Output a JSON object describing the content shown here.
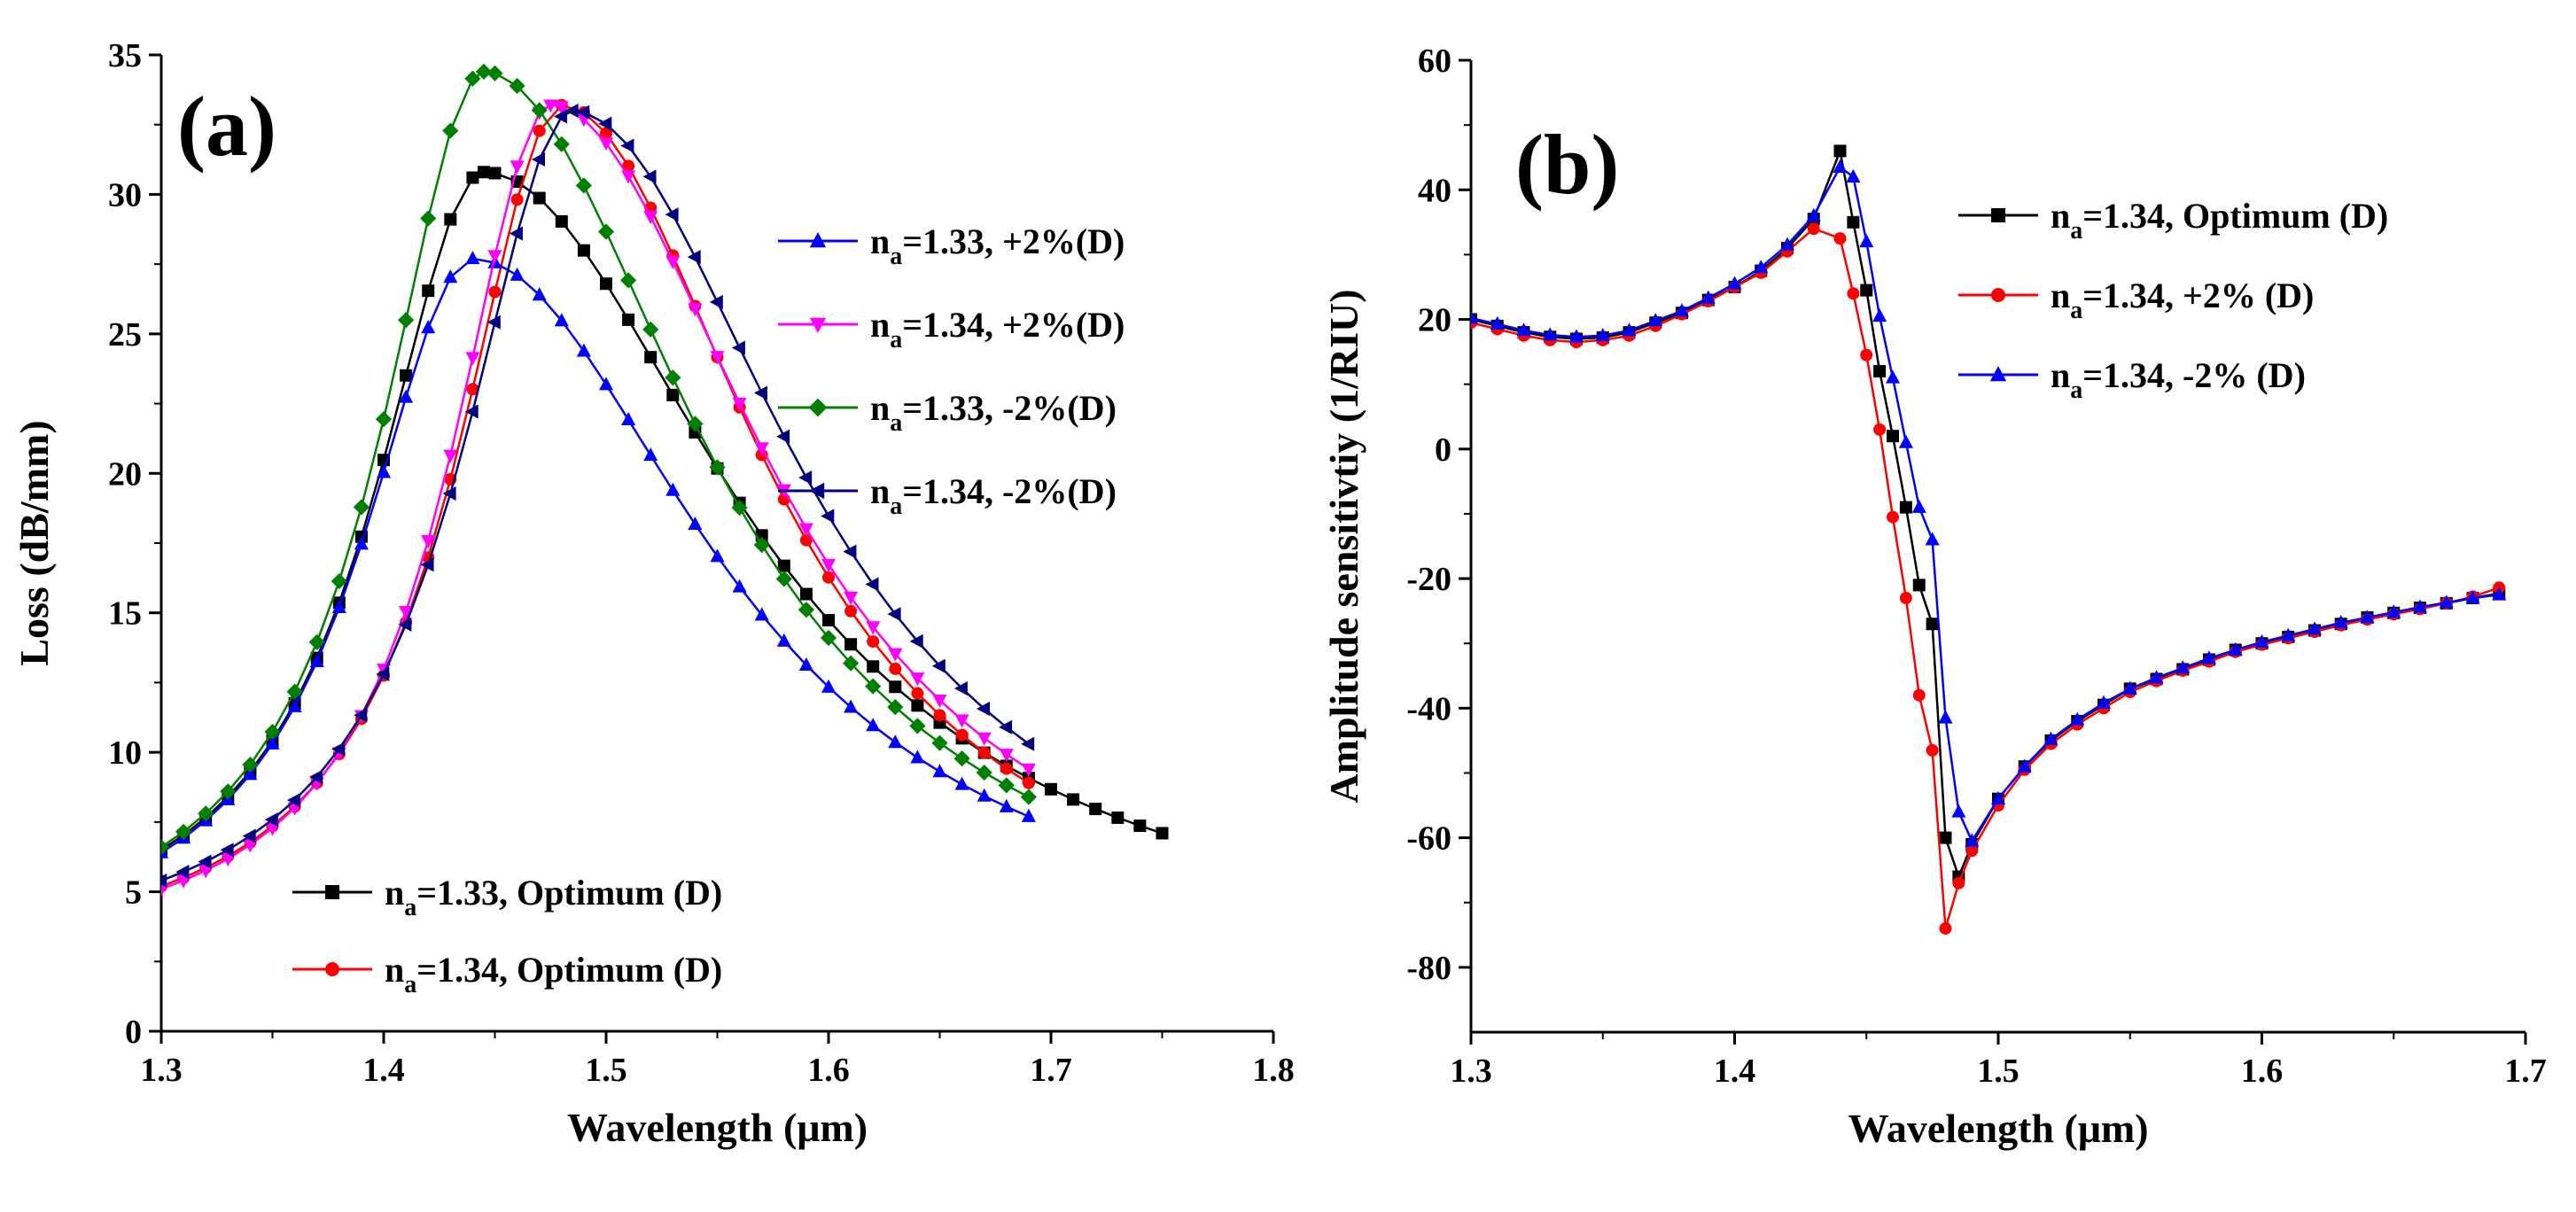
{
  "chart_data": [
    {
      "type": "line",
      "panel_label": "(a)",
      "xlabel": "Wavelength (μm)",
      "ylabel": "Loss (dB/mm)",
      "xlim": [
        1.3,
        1.8
      ],
      "ylim": [
        0,
        35
      ],
      "xticks": [
        "1.3",
        "1.4",
        "1.5",
        "1.6",
        "1.7",
        "1.8"
      ],
      "yticks": [
        "0",
        "5",
        "10",
        "15",
        "20",
        "25",
        "30",
        "35"
      ],
      "series": [
        {
          "key": "a-opt133",
          "name": "n_a=1.33, Optimum (D)",
          "label_pre": "n",
          "label_sub": "a",
          "label_post": "=1.33, Optimum (D)",
          "color": "#000000",
          "marker": "square",
          "peak_x": 1.445,
          "peak_y": 30.8,
          "x_start": 1.3,
          "x_end": 1.75,
          "y_start": 6.5,
          "y_end": 7.1,
          "legend_group": "bottom"
        },
        {
          "key": "a-opt134",
          "name": "n_a=1.34, Optimum (D)",
          "label_pre": "n",
          "label_sub": "a",
          "label_post": "=1.34, Optimum (D)",
          "color": "#ff0000",
          "marker": "circle",
          "peak_x": 1.48,
          "peak_y": 33.2,
          "x_start": 1.3,
          "x_end": 1.69,
          "y_start": 5.2,
          "y_end": 8.9,
          "legend_group": "bottom"
        },
        {
          "key": "a-p2-133",
          "name": "n_a=1.33, +2%(D)",
          "label_pre": "n",
          "label_sub": "a",
          "label_post": "=1.33, +2%(D)",
          "color": "#0000ff",
          "marker": "triangle-up",
          "peak_x": 1.44,
          "peak_y": 27.7,
          "x_start": 1.3,
          "x_end": 1.69,
          "y_start": 6.4,
          "y_end": 7.7,
          "legend_group": "top"
        },
        {
          "key": "a-p2-134",
          "name": "n_a=1.34, +2%(D)",
          "label_pre": "n",
          "label_sub": "a",
          "label_post": "=1.34, +2%(D)",
          "color": "#ff00ff",
          "marker": "triangle-down",
          "peak_x": 1.475,
          "peak_y": 33.2,
          "x_start": 1.3,
          "x_end": 1.69,
          "y_start": 5.1,
          "y_end": 9.4,
          "legend_group": "top"
        },
        {
          "key": "a-m2-133",
          "name": "n_a=1.33, -2%(D)",
          "label_pre": "n",
          "label_sub": "a",
          "label_post": "=1.33, -2%(D)",
          "color": "#008000",
          "marker": "diamond",
          "peak_x": 1.445,
          "peak_y": 34.4,
          "x_start": 1.3,
          "x_end": 1.69,
          "y_start": 6.6,
          "y_end": 8.4,
          "legend_group": "top"
        },
        {
          "key": "a-m2-134",
          "name": "n_a=1.34, -2%(D)",
          "label_pre": "n",
          "label_sub": "a",
          "label_post": "=1.34, -2%(D)",
          "color": "#000080",
          "marker": "triangle-left",
          "peak_x": 1.485,
          "peak_y": 33.0,
          "x_start": 1.3,
          "x_end": 1.69,
          "y_start": 5.4,
          "y_end": 10.3,
          "legend_group": "top"
        }
      ]
    },
    {
      "type": "line",
      "panel_label": "(b)",
      "xlabel": "Wavelength (μm)",
      "ylabel": "Amplitude sensitivtiy (1/RIU)",
      "xlim": [
        1.3,
        1.7
      ],
      "ylim": [
        -90,
        60
      ],
      "xticks": [
        "1.3",
        "1.4",
        "1.5",
        "1.6",
        "1.7"
      ],
      "yticks": [
        "-80",
        "-60",
        "-40",
        "-20",
        "0",
        "20",
        "40",
        "60"
      ],
      "series": [
        {
          "key": "b-opt",
          "name": "n_a=1.34, Optimum (D)",
          "label_pre": "n",
          "label_sub": "a",
          "label_post": "=1.34, Optimum (D)",
          "color": "#000000",
          "marker": "square",
          "x": [
            1.3,
            1.31,
            1.32,
            1.33,
            1.34,
            1.35,
            1.36,
            1.37,
            1.38,
            1.39,
            1.4,
            1.41,
            1.42,
            1.43,
            1.44,
            1.445,
            1.45,
            1.455,
            1.46,
            1.465,
            1.47,
            1.475,
            1.48,
            1.485,
            1.49,
            1.5,
            1.51,
            1.52,
            1.53,
            1.54,
            1.55,
            1.56,
            1.57,
            1.58,
            1.59,
            1.6,
            1.61,
            1.62,
            1.63,
            1.64,
            1.65,
            1.66,
            1.67,
            1.68,
            1.69
          ],
          "y": [
            20,
            19,
            18,
            17.3,
            17,
            17.2,
            18,
            19.5,
            21,
            23,
            25,
            27.5,
            31,
            35.5,
            46,
            35,
            24.5,
            12,
            2,
            -9,
            -21,
            -27,
            -60,
            -66,
            -61,
            -54,
            -49,
            -45,
            -42,
            -39.5,
            -37,
            -35.5,
            -34,
            -32.5,
            -31,
            -30,
            -29,
            -28,
            -27,
            -26,
            -25.3,
            -24.5,
            -23.8,
            -23,
            -22.3
          ]
        },
        {
          "key": "b-p2",
          "name": "n_a=1.34, +2% (D)",
          "label_pre": "n",
          "label_sub": "a",
          "label_post": "=1.34, +2% (D)",
          "color": "#ff0000",
          "marker": "circle",
          "x": [
            1.3,
            1.31,
            1.32,
            1.33,
            1.34,
            1.35,
            1.36,
            1.37,
            1.38,
            1.39,
            1.4,
            1.41,
            1.42,
            1.43,
            1.44,
            1.445,
            1.45,
            1.455,
            1.46,
            1.465,
            1.47,
            1.475,
            1.48,
            1.485,
            1.49,
            1.5,
            1.51,
            1.52,
            1.53,
            1.54,
            1.55,
            1.56,
            1.57,
            1.58,
            1.59,
            1.6,
            1.61,
            1.62,
            1.63,
            1.64,
            1.65,
            1.66,
            1.67,
            1.68,
            1.69
          ],
          "y": [
            19.5,
            18.5,
            17.5,
            16.8,
            16.5,
            16.8,
            17.5,
            19,
            20.8,
            22.8,
            25,
            27.2,
            30.5,
            34,
            32.5,
            24,
            14.5,
            3,
            -10.5,
            -23,
            -38,
            -46.5,
            -74,
            -67,
            -62,
            -55,
            -49.5,
            -45.5,
            -42.5,
            -40,
            -37.5,
            -35.8,
            -34.2,
            -32.8,
            -31.3,
            -30.2,
            -29.2,
            -28.2,
            -27.2,
            -26.3,
            -25.5,
            -24.7,
            -23.8,
            -22.8,
            -21.4
          ]
        },
        {
          "key": "b-m2",
          "name": "n_a=1.34, -2% (D)",
          "label_pre": "n",
          "label_sub": "a",
          "label_post": "=1.34, -2% (D)",
          "color": "#0000ff",
          "marker": "triangle-up",
          "x": [
            1.3,
            1.31,
            1.32,
            1.33,
            1.34,
            1.35,
            1.36,
            1.37,
            1.38,
            1.39,
            1.4,
            1.41,
            1.42,
            1.43,
            1.44,
            1.445,
            1.45,
            1.455,
            1.46,
            1.465,
            1.47,
            1.475,
            1.48,
            1.485,
            1.49,
            1.5,
            1.51,
            1.52,
            1.53,
            1.54,
            1.55,
            1.56,
            1.57,
            1.58,
            1.59,
            1.6,
            1.61,
            1.62,
            1.63,
            1.64,
            1.65,
            1.66,
            1.67,
            1.68,
            1.69
          ],
          "y": [
            20.2,
            19.3,
            18.3,
            17.6,
            17.3,
            17.5,
            18.3,
            19.8,
            21.3,
            23.3,
            25.5,
            28,
            31.5,
            36,
            43.5,
            42,
            32,
            20.5,
            11,
            1,
            -9,
            -14,
            -41.5,
            -56,
            -60.5,
            -54,
            -49,
            -44.8,
            -41.8,
            -39.2,
            -37,
            -35.3,
            -33.8,
            -32.3,
            -31,
            -29.8,
            -28.8,
            -27.8,
            -26.8,
            -26,
            -25.2,
            -24.4,
            -23.7,
            -23,
            -22.5
          ]
        }
      ]
    }
  ]
}
